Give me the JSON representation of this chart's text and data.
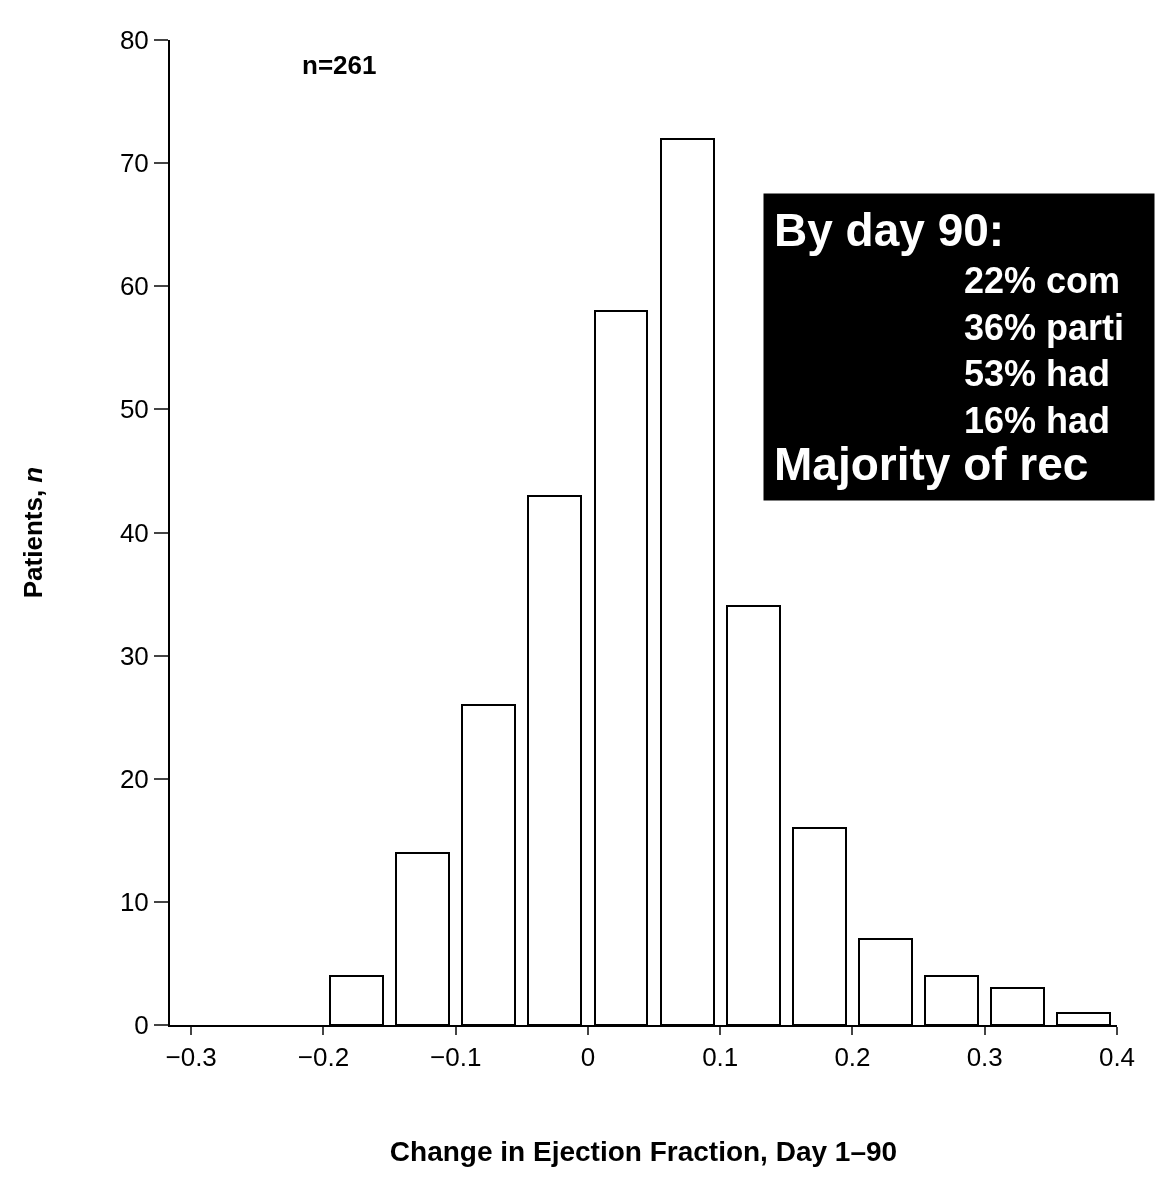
{
  "chart_data": {
    "type": "histogram",
    "xlabel": "Change in Ejection Fraction, Day 1–90",
    "ylabel": "Patients, n",
    "bins": [
      -0.2,
      -0.15,
      -0.1,
      -0.05,
      0,
      0.05,
      0.1,
      0.15,
      0.2,
      0.25,
      0.3,
      0.35,
      0.4
    ],
    "values": [
      4,
      14,
      26,
      43,
      58,
      72,
      34,
      16,
      7,
      4,
      3,
      1
    ],
    "color": "#ffffff",
    "xlim": [
      -0.316,
      0.4
    ],
    "xticks": [
      -0.3,
      -0.2,
      -0.1,
      0,
      0.1,
      0.2,
      0.3,
      0.4
    ],
    "ylim": [
      0,
      80
    ],
    "yticks": [
      0,
      10,
      20,
      30,
      40,
      50,
      60,
      70,
      80
    ],
    "legend": false,
    "annotations": [
      "n=261",
      "By day 90:",
      "22% com",
      "36% parti",
      "53% had",
      "16% had",
      "Majority of rec"
    ]
  }
}
